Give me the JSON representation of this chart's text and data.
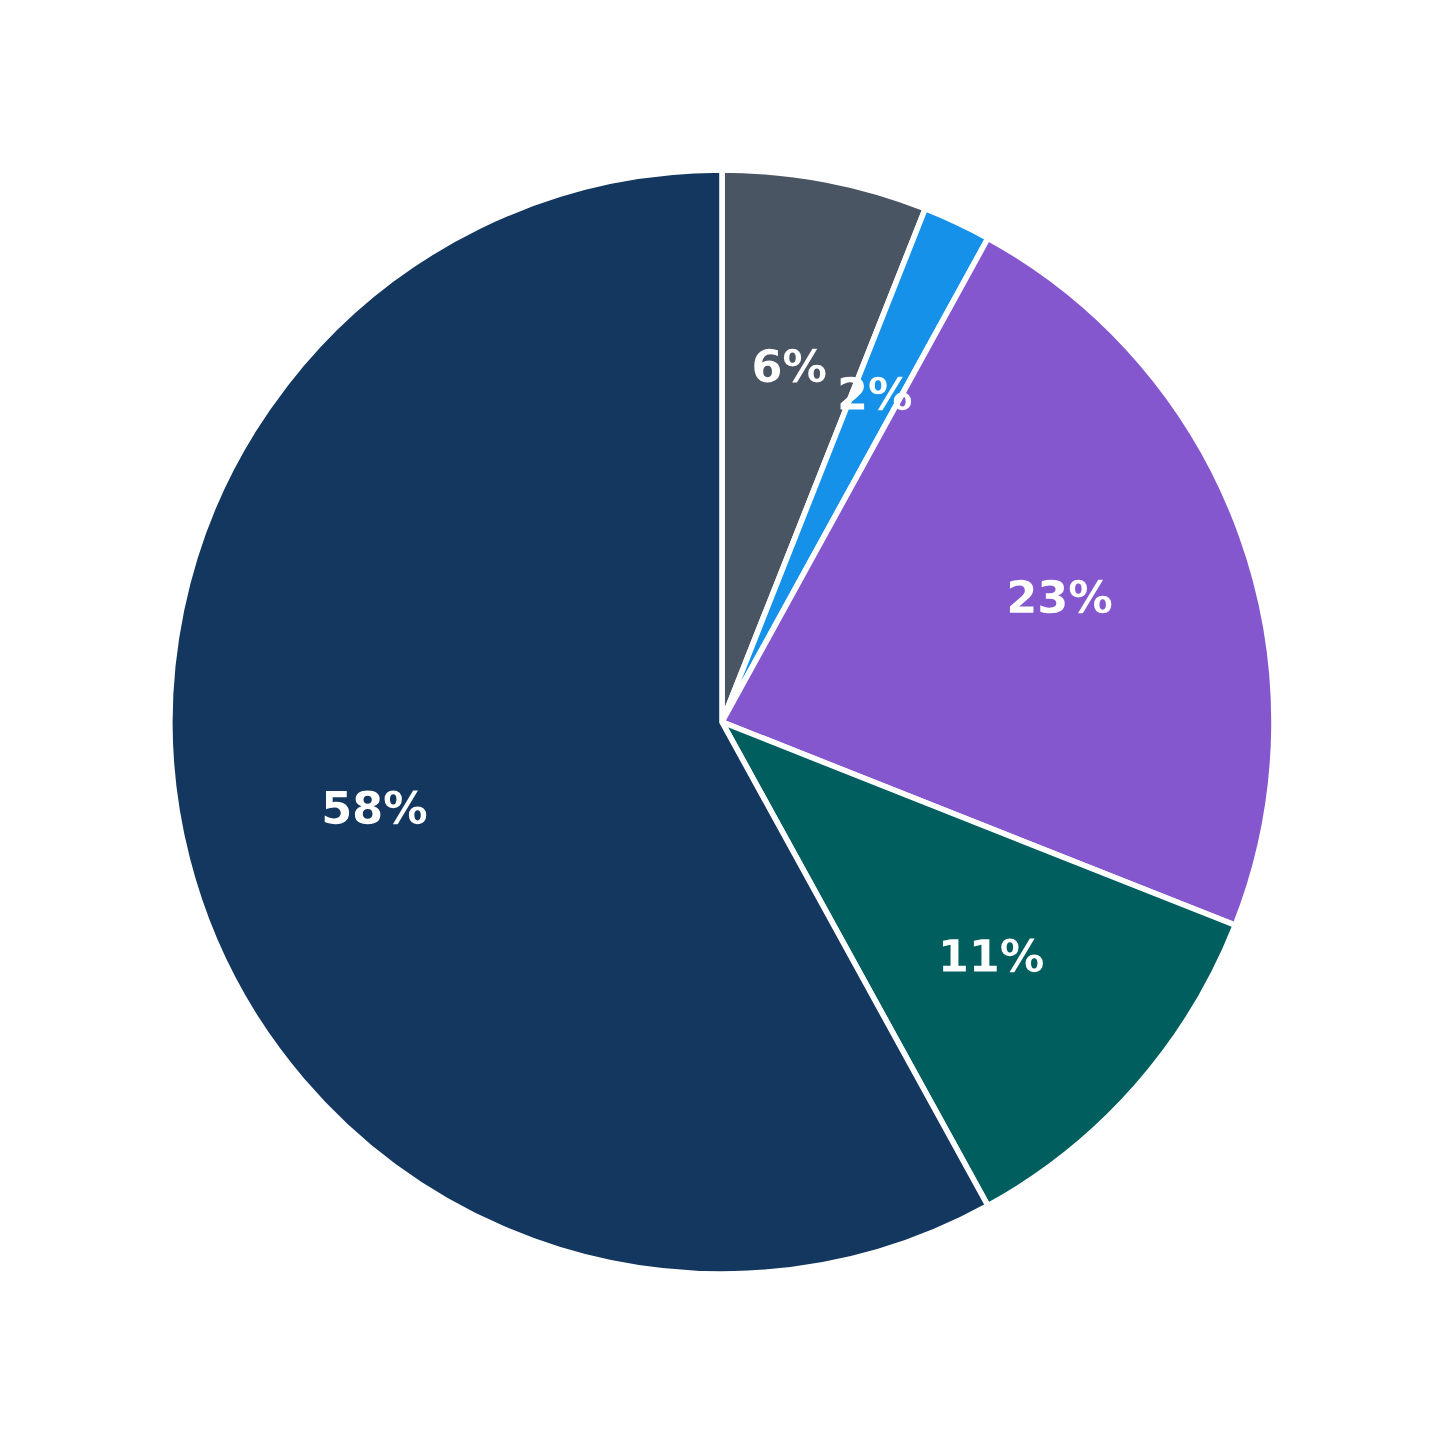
{
  "chart_data": {
    "type": "pie",
    "categories": [
      null,
      null,
      null,
      null,
      null
    ],
    "values": [
      6,
      2,
      23,
      11,
      58
    ],
    "colors": [
      "#4a5563",
      "#1591ea",
      "#8557cf",
      "#005e5e",
      "#13375f"
    ],
    "value_labels": [
      "6%",
      "2%",
      "23%",
      "11%",
      "58%"
    ]
  }
}
